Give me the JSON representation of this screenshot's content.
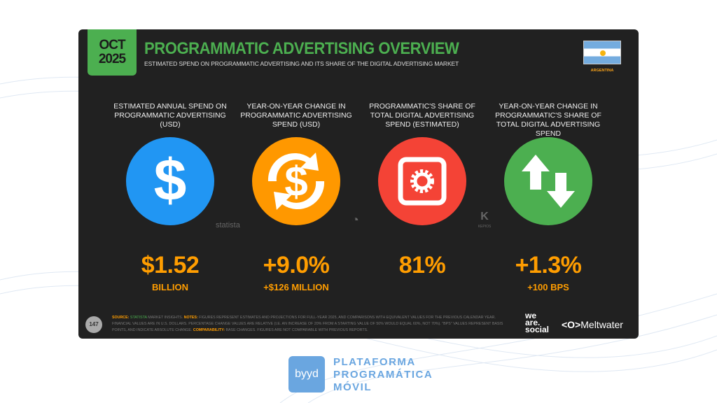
{
  "header": {
    "month": "OCT",
    "year": "2025",
    "title": "PROGRAMMATIC ADVERTISING OVERVIEW",
    "subtitle": "ESTIMATED SPEND ON PROGRAMMATIC ADVERTISING AND ITS SHARE OF THE DIGITAL ADVERTISING MARKET",
    "country": "ARGENTINA"
  },
  "metrics": [
    {
      "label": "ESTIMATED ANNUAL SPEND ON PROGRAMMATIC ADVERTISING (USD)",
      "value": "$1.52",
      "sub": "BILLION",
      "icon": "dollar-icon",
      "color": "#2196f3"
    },
    {
      "label": "YEAR-ON-YEAR CHANGE IN PROGRAMMATIC ADVERTISING SPEND (USD)",
      "value": "+9.0%",
      "sub": "+$126 MILLION",
      "icon": "dollar-cycle-icon",
      "color": "#ff9800"
    },
    {
      "label": "PROGRAMMATIC'S SHARE OF TOTAL DIGITAL ADVERTISING SPEND (ESTIMATED)",
      "value": "81%",
      "sub": "",
      "icon": "gear-icon",
      "color": "#f44336"
    },
    {
      "label": "YEAR-ON-YEAR CHANGE IN PROGRAMMATIC'S SHARE OF TOTAL DIGITAL ADVERTISING SPEND",
      "value": "+1.3%",
      "sub": "+100 BPS",
      "icon": "up-down-arrows-icon",
      "color": "#4caf50"
    }
  ],
  "sources": {
    "statista": "statista",
    "kepios": "KEPIOS"
  },
  "footer": {
    "page": "147",
    "source_label": "SOURCE:",
    "source": "STATISTA",
    "source_rest": " MARKET INSIGHTS. ",
    "notes_label": "NOTES:",
    "notes": " FIGURES REPRESENT ESTIMATES AND PROJECTIONS FOR FULL-YEAR 2025, AND COMPARISONS WITH EQUIVALENT VALUES FOR THE PREVIOUS CALENDAR YEAR. FINANCIAL VALUES ARE IN U.S. DOLLARS. PERCENTAGE CHANGE VALUES ARE RELATIVE (I.E. AN INCREASE OF 20% FROM A STARTING VALUE OF 50% WOULD EQUAL 60%, NOT 70%). \"BPS\" VALUES REPRESENT BASIS POINTS, AND INDICATE ABSOLUTE CHANGE. ",
    "comp_label": "COMPARABILITY:",
    "comp": " BASE CHANGES. FIGURES ARE NOT COMPARABLE WITH PREVIOUS REPORTS.",
    "we": "we",
    "are": "are.",
    "social": "social",
    "meltwater": "Meltwater"
  },
  "brand": {
    "logo": "byyd",
    "line1": "PLATAFORMA",
    "line2": "PROGRAMÁTICA",
    "line3": "MÓVIL"
  }
}
